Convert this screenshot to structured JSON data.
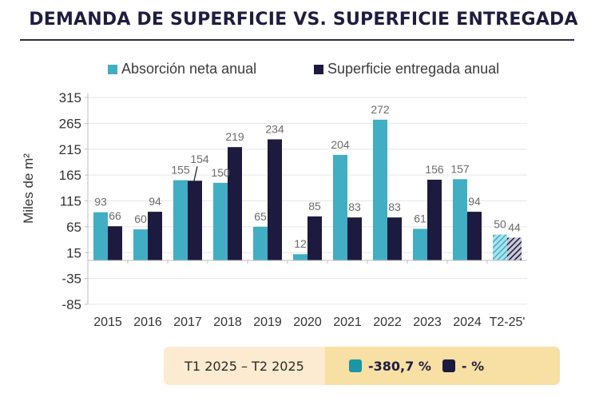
{
  "header": {
    "title": "DEMANDA DE SUPERFICIE VS. SUPERFICIE ENTREGADA"
  },
  "colors": {
    "absorption": "#41aec4",
    "delivered": "#1d1a40",
    "absorption_summary": "#1996a8",
    "title": "#1f1d3f",
    "summary_bg": "#f8dfa3",
    "summary_period_bg": "#fcebd0"
  },
  "chart_data": {
    "type": "bar",
    "title": "DEMANDA DE SUPERFICIE VS. SUPERFICIE ENTREGADA",
    "xlabel": "",
    "ylabel": "Miles de m²",
    "ylim": [
      -85,
      315
    ],
    "yticks": [
      315,
      265,
      215,
      165,
      115,
      65,
      15,
      -35,
      -85
    ],
    "grid": true,
    "legend_position": "top-center",
    "categories": [
      "2015",
      "2016",
      "2017",
      "2018",
      "2019",
      "2020",
      "2021",
      "2022",
      "2023",
      "2024",
      "T2-25'"
    ],
    "series": [
      {
        "name": "Absorción neta anual",
        "values": [
          93,
          60,
          155,
          150,
          65,
          12,
          204,
          272,
          61,
          157,
          50
        ]
      },
      {
        "name": "Superficie entregada anual",
        "values": [
          66,
          94,
          154,
          219,
          234,
          85,
          83,
          83,
          156,
          94,
          44
        ]
      }
    ],
    "hatched_categories": [
      "T2-25'"
    ],
    "annotations": [
      {
        "text": "154",
        "category": "2017",
        "series": "Superficie entregada anual",
        "type": "leader-line"
      }
    ]
  },
  "summary": {
    "period": "T1 2025 – T2 2025",
    "absorption_change": "-380,7 %",
    "delivered_change": "- %"
  }
}
